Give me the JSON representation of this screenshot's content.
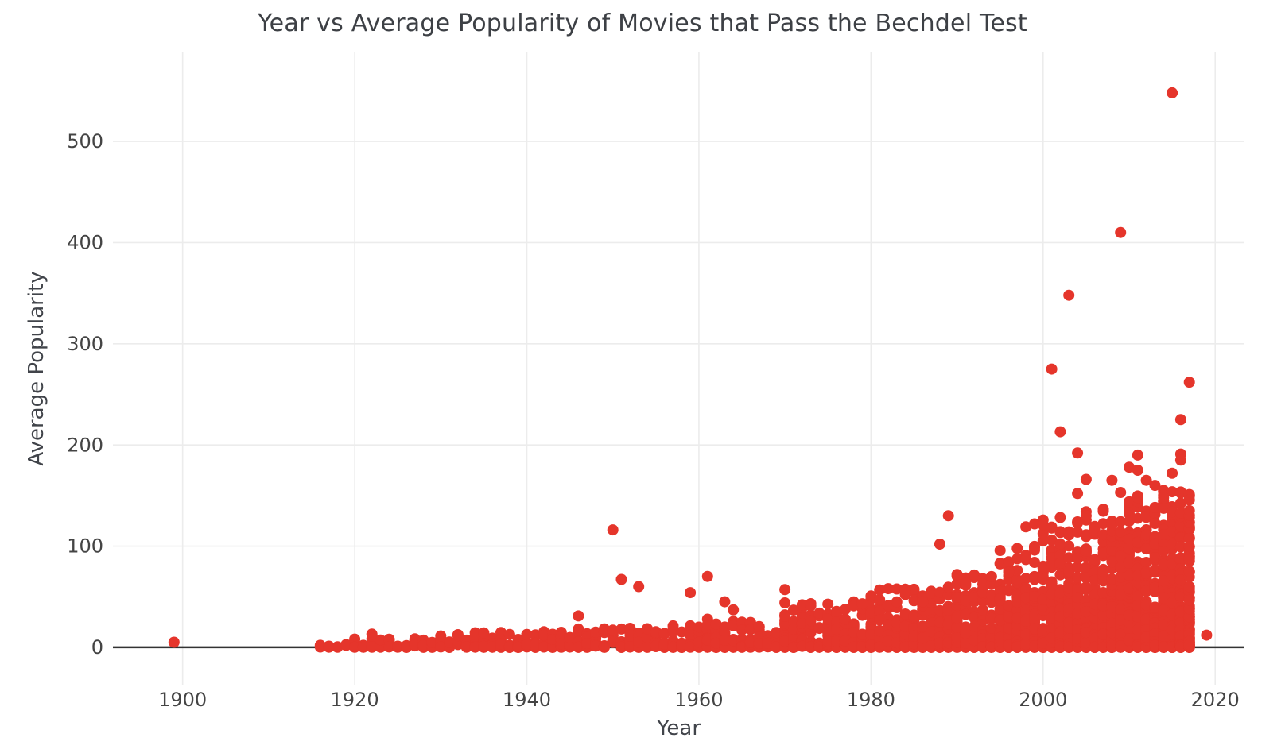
{
  "chart_data": {
    "type": "scatter",
    "title": "Year vs Average Popularity of Movies that Pass the Bechdel Test",
    "xlabel": "Year",
    "ylabel": "Average Popularity",
    "x_ticks": [
      1900,
      1920,
      1940,
      1960,
      1980,
      2000,
      2020
    ],
    "y_ticks": [
      0,
      100,
      200,
      300,
      400,
      500
    ],
    "x_range": [
      1891.9,
      2023.4
    ],
    "y_range": [
      -37,
      588
    ],
    "grid": true,
    "legend": false,
    "marker": {
      "color": "#e5352b",
      "radius": 7
    },
    "colors": {
      "grid": "#ececec",
      "zeroline": "#333333",
      "tick_text": "#444444",
      "title_text": "#3d4045",
      "background": "#ffffff"
    },
    "outliers": [
      [
        1899,
        5
      ],
      [
        1922,
        13
      ],
      [
        1946,
        31
      ],
      [
        1950,
        116
      ],
      [
        1951,
        67
      ],
      [
        1953,
        60
      ],
      [
        1959,
        54
      ],
      [
        1961,
        70
      ],
      [
        1963,
        45
      ],
      [
        1964,
        37
      ],
      [
        1970,
        57
      ],
      [
        1972,
        42
      ],
      [
        1973,
        41
      ],
      [
        1978,
        41
      ],
      [
        1979,
        43
      ],
      [
        1984,
        55
      ],
      [
        1986,
        45
      ],
      [
        1988,
        102
      ],
      [
        1989,
        130
      ],
      [
        1990,
        72
      ],
      [
        1991,
        63
      ],
      [
        1996,
        74
      ],
      [
        1998,
        119
      ],
      [
        1999,
        122
      ],
      [
        1999,
        96
      ],
      [
        2000,
        121
      ],
      [
        2001,
        275
      ],
      [
        2001,
        118
      ],
      [
        2002,
        213
      ],
      [
        2002,
        102
      ],
      [
        2003,
        348
      ],
      [
        2004,
        192
      ],
      [
        2004,
        152
      ],
      [
        2005,
        166
      ],
      [
        2005,
        130
      ],
      [
        2008,
        165
      ],
      [
        2009,
        410
      ],
      [
        2009,
        153
      ],
      [
        2010,
        178
      ],
      [
        2011,
        190
      ],
      [
        2011,
        175
      ],
      [
        2012,
        165
      ],
      [
        2013,
        160
      ],
      [
        2014,
        148
      ],
      [
        2015,
        548
      ],
      [
        2015,
        172
      ],
      [
        2016,
        225
      ],
      [
        2016,
        191
      ],
      [
        2016,
        185
      ],
      [
        2017,
        262
      ],
      [
        2017,
        135
      ],
      [
        2019,
        12
      ]
    ],
    "density_bands": [
      {
        "from": 1916,
        "to": 1919,
        "per_year": 2,
        "vmax": 4,
        "tail_n": 0,
        "tail_vmax": 0
      },
      {
        "from": 1920,
        "to": 1926,
        "per_year": 4,
        "vmax": 9,
        "tail_n": 0,
        "tail_vmax": 0
      },
      {
        "from": 1927,
        "to": 1931,
        "per_year": 6,
        "vmax": 12,
        "tail_n": 0,
        "tail_vmax": 0
      },
      {
        "from": 1932,
        "to": 1939,
        "per_year": 7,
        "vmax": 15,
        "tail_n": 0,
        "tail_vmax": 0
      },
      {
        "from": 1940,
        "to": 1945,
        "per_year": 8,
        "vmax": 17,
        "tail_n": 0,
        "tail_vmax": 0
      },
      {
        "from": 1946,
        "to": 1949,
        "per_year": 9,
        "vmax": 19,
        "tail_n": 0,
        "tail_vmax": 0
      },
      {
        "from": 1950,
        "to": 1955,
        "per_year": 10,
        "vmax": 21,
        "tail_n": 0,
        "tail_vmax": 0
      },
      {
        "from": 1956,
        "to": 1959,
        "per_year": 11,
        "vmax": 24,
        "tail_n": 0,
        "tail_vmax": 0
      },
      {
        "from": 1960,
        "to": 1964,
        "per_year": 13,
        "vmax": 28,
        "tail_n": 0,
        "tail_vmax": 0
      },
      {
        "from": 1965,
        "to": 1969,
        "per_year": 13,
        "vmax": 26,
        "tail_n": 0,
        "tail_vmax": 0
      },
      {
        "from": 1970,
        "to": 1974,
        "per_year": 15,
        "vmax": 33,
        "tail_n": 1,
        "tail_vmax": 45
      },
      {
        "from": 1975,
        "to": 1979,
        "per_year": 17,
        "vmax": 35,
        "tail_n": 1,
        "tail_vmax": 45
      },
      {
        "from": 1980,
        "to": 1984,
        "per_year": 21,
        "vmax": 40,
        "tail_n": 2,
        "tail_vmax": 58
      },
      {
        "from": 1985,
        "to": 1989,
        "per_year": 25,
        "vmax": 48,
        "tail_n": 2,
        "tail_vmax": 60
      },
      {
        "from": 1990,
        "to": 1994,
        "per_year": 32,
        "vmax": 60,
        "tail_n": 2,
        "tail_vmax": 75
      },
      {
        "from": 1995,
        "to": 1999,
        "per_year": 42,
        "vmax": 75,
        "tail_n": 3,
        "tail_vmax": 100
      },
      {
        "from": 2000,
        "to": 2004,
        "per_year": 55,
        "vmax": 100,
        "tail_n": 3,
        "tail_vmax": 130
      },
      {
        "from": 2005,
        "to": 2009,
        "per_year": 62,
        "vmax": 108,
        "tail_n": 4,
        "tail_vmax": 140
      },
      {
        "from": 2010,
        "to": 2013,
        "per_year": 75,
        "vmax": 120,
        "tail_n": 5,
        "tail_vmax": 150
      },
      {
        "from": 2014,
        "to": 2017,
        "per_year": 88,
        "vmax": 128,
        "tail_n": 6,
        "tail_vmax": 155
      }
    ],
    "skew": 2.6,
    "seed": 20
  }
}
